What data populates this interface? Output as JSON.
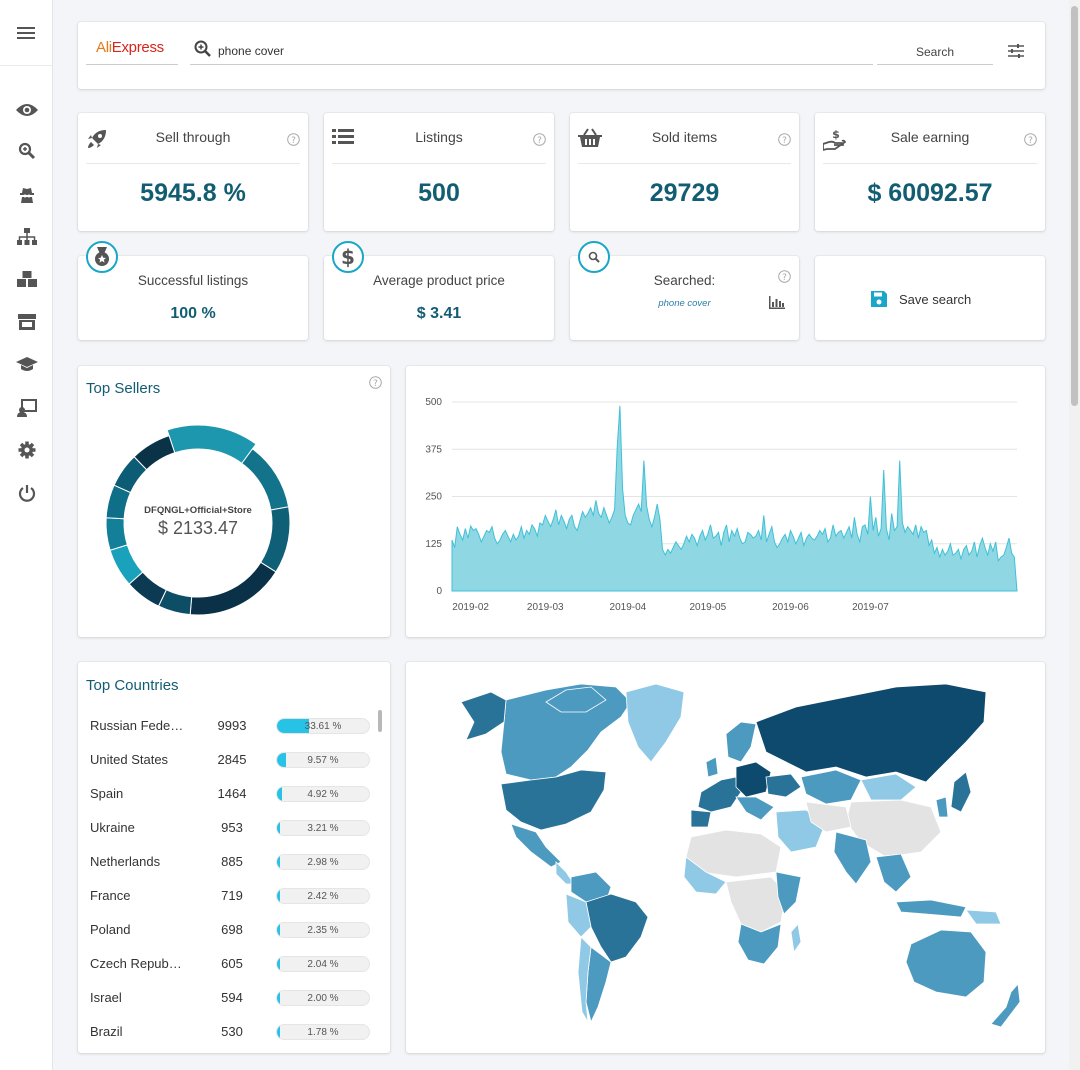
{
  "search": {
    "brand_ali": "Ali",
    "brand_express": "Express",
    "query": "phone cover",
    "button_label": "Search"
  },
  "sidebar": {
    "items": [
      "view-icon",
      "research-icon",
      "spy-icon",
      "categories-icon",
      "products-icon",
      "store-icon",
      "academy-icon",
      "support-icon",
      "settings-icon",
      "logout-icon"
    ]
  },
  "stats": {
    "sell_through": {
      "title": "Sell through",
      "value": "5945.8 %"
    },
    "listings": {
      "title": "Listings",
      "value": "500"
    },
    "sold_items": {
      "title": "Sold items",
      "value": "29729"
    },
    "sale_earning": {
      "title": "Sale earning",
      "value": "$ 60092.57"
    }
  },
  "small_stats": {
    "successful_listings": {
      "title": "Successful listings",
      "value": "100 %"
    },
    "average_price": {
      "title": "Average product price",
      "value": "$ 3.41"
    },
    "searched": {
      "title": "Searched:",
      "term": "phone cover"
    },
    "save_search": {
      "label": "Save search"
    }
  },
  "top_sellers": {
    "title": "Top Sellers",
    "center_name": "DFQNGL+Official+Store",
    "center_value": "$ 2133.47"
  },
  "colors": {
    "primary_text": "#135d73",
    "accent": "#1aa6c9",
    "area_fill": "#8fd8e3",
    "area_stroke": "#3fc0d8"
  },
  "chart_data": [
    {
      "type": "pie",
      "title": "Top Sellers",
      "slices": [
        {
          "name": "DFQNGL+Official+Store",
          "value": 2133.47
        },
        {
          "value": 1700
        },
        {
          "value": 1650
        },
        {
          "value": 2450
        },
        {
          "value": 800
        },
        {
          "value": 900
        },
        {
          "value": 950
        },
        {
          "value": 800
        },
        {
          "value": 820
        },
        {
          "value": 850
        },
        {
          "value": 1000
        }
      ],
      "slice_colors": [
        "#1d97ad",
        "#12738a",
        "#0f5f77",
        "#0b3149",
        "#0b4e66",
        "#0c3a52",
        "#1aa1bb",
        "#137f99",
        "#0f6e88",
        "#0b5c74",
        "#0a3348"
      ]
    },
    {
      "type": "area",
      "x_start": "2019-01-25",
      "ylim": [
        0,
        500
      ],
      "yticks": [
        0,
        125,
        250,
        375,
        500
      ],
      "xticks": [
        "2019-02",
        "2019-03",
        "2019-04",
        "2019-05",
        "2019-06",
        "2019-07"
      ],
      "values": [
        135,
        115,
        170,
        150,
        135,
        165,
        140,
        172,
        160,
        165,
        150,
        130,
        145,
        160,
        155,
        170,
        140,
        125,
        135,
        150,
        160,
        145,
        130,
        150,
        135,
        145,
        170,
        140,
        160,
        150,
        175,
        165,
        145,
        180,
        175,
        200,
        185,
        170,
        190,
        215,
        175,
        200,
        185,
        165,
        190,
        200,
        170,
        160,
        185,
        210,
        195,
        205,
        220,
        200,
        240,
        205,
        195,
        220,
        200,
        180,
        195,
        215,
        380,
        490,
        270,
        200,
        180,
        175,
        200,
        215,
        230,
        210,
        345,
        225,
        190,
        170,
        195,
        230,
        190,
        110,
        95,
        110,
        100,
        115,
        130,
        120,
        110,
        125,
        145,
        130,
        150,
        140,
        120,
        145,
        160,
        135,
        150,
        175,
        140,
        145,
        155,
        120,
        155,
        175,
        130,
        160,
        145,
        165,
        140,
        125,
        130,
        155,
        150,
        140,
        145,
        160,
        135,
        200,
        130,
        150,
        170,
        130,
        115,
        125,
        140,
        150,
        130,
        160,
        145,
        125,
        140,
        155,
        120,
        140,
        150,
        140,
        135,
        145,
        160,
        150,
        165,
        130,
        140,
        175,
        145,
        155,
        160,
        140,
        155,
        170,
        140,
        195,
        150,
        130,
        170,
        175,
        150,
        250,
        160,
        195,
        145,
        165,
        320,
        165,
        135,
        205,
        160,
        170,
        345,
        180,
        155,
        170,
        160,
        150,
        175,
        140,
        170,
        155,
        160,
        120,
        135,
        100,
        115,
        90,
        110,
        95,
        105,
        125,
        95,
        100,
        110,
        85,
        110,
        120,
        95,
        105,
        130,
        90,
        120,
        140,
        115,
        95,
        125,
        105,
        130,
        80,
        90,
        95,
        115,
        140,
        100,
        90,
        0
      ]
    }
  ],
  "top_countries": {
    "title": "Top Countries",
    "rows": [
      {
        "name": "Russian Fede…",
        "count": "9993",
        "pct": "33.61 %",
        "frac": 0.3361
      },
      {
        "name": "United States",
        "count": "2845",
        "pct": "9.57 %",
        "frac": 0.0957
      },
      {
        "name": "Spain",
        "count": "1464",
        "pct": "4.92 %",
        "frac": 0.0492
      },
      {
        "name": "Ukraine",
        "count": "953",
        "pct": "3.21 %",
        "frac": 0.0321
      },
      {
        "name": "Netherlands",
        "count": "885",
        "pct": "2.98 %",
        "frac": 0.0298
      },
      {
        "name": "France",
        "count": "719",
        "pct": "2.42 %",
        "frac": 0.0242
      },
      {
        "name": "Poland",
        "count": "698",
        "pct": "2.35 %",
        "frac": 0.0235
      },
      {
        "name": "Czech Repub…",
        "count": "605",
        "pct": "2.04 %",
        "frac": 0.0204
      },
      {
        "name": "Israel",
        "count": "594",
        "pct": "2.00 %",
        "frac": 0.02
      },
      {
        "name": "Brazil",
        "count": "530",
        "pct": "1.78 %",
        "frac": 0.0178
      }
    ]
  },
  "world_map": {
    "shade_scale": [
      "#e3e3e3",
      "#8fc9e6",
      "#4d9ac1",
      "#2a7398",
      "#0d4a6d"
    ]
  }
}
